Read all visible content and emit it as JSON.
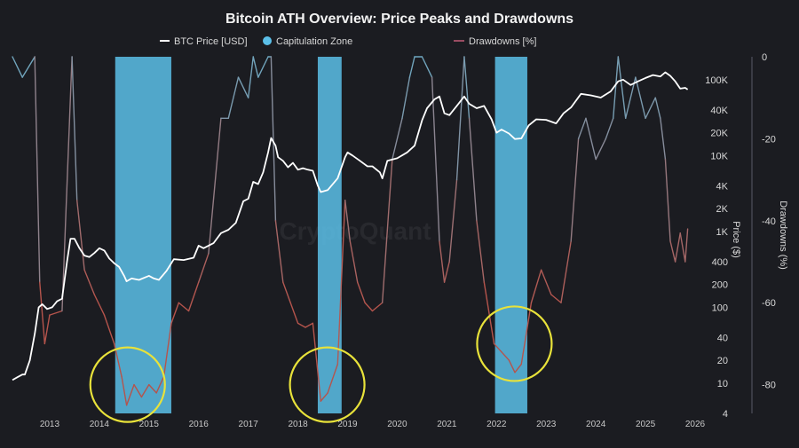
{
  "chart_data": {
    "type": "line",
    "title": "Bitcoin ATH Overview: Price Peaks and Drawdowns",
    "watermark": "CryptoQuant",
    "legend": {
      "placement": "top",
      "entries": [
        "BTC Price [USD]",
        "Capitulation Zone",
        "Drawdowns [%]"
      ]
    },
    "colors": {
      "background": "#1b1c21",
      "price_line": "#ffffff",
      "capitulation_zone": "#5bbfe8",
      "drawdown_high": "#6ea8c2",
      "drawdown_low": "#b5544c",
      "highlight_circle": "#e8e23a"
    },
    "x_axis": {
      "type": "time",
      "range": [
        2012.75,
        2026.5
      ],
      "tick_labels": [
        "2013",
        "2014",
        "2015",
        "2016",
        "2017",
        "2018",
        "2019",
        "2020",
        "2021",
        "2022",
        "2023",
        "2024",
        "2025",
        "2026"
      ],
      "tick_values": [
        2013,
        2014,
        2015,
        2016,
        2017,
        2018,
        2019,
        2020,
        2021,
        2022,
        2023,
        2024,
        2025,
        2026
      ]
    },
    "price_axis": {
      "label": "Price ($)",
      "scale": "log",
      "range": [
        4,
        200000
      ],
      "tick_labels": [
        "100K",
        "40K",
        "20K",
        "10K",
        "4K",
        "2K",
        "1K",
        "400",
        "200",
        "100",
        "40",
        "20",
        "10",
        "4"
      ],
      "tick_values": [
        100000,
        40000,
        20000,
        10000,
        4000,
        2000,
        1000,
        400,
        200,
        100,
        40,
        20,
        10,
        4
      ],
      "grid": false
    },
    "drawdown_axis": {
      "label": "Drawdowns (%)",
      "scale": "linear",
      "range": [
        -87,
        0
      ],
      "tick_labels": [
        "0",
        "-20",
        "-40",
        "-60",
        "-80"
      ],
      "tick_values": [
        0,
        -20,
        -40,
        -60,
        -80
      ]
    },
    "series": [
      {
        "name": "BTC Price [USD]",
        "x": [
          2012.75,
          2012.85,
          2012.95,
          2013.0,
          2013.1,
          2013.2,
          2013.28,
          2013.35,
          2013.45,
          2013.55,
          2013.65,
          2013.75,
          2013.85,
          2013.92,
          2014.0,
          2014.1,
          2014.2,
          2014.3,
          2014.4,
          2014.5,
          2014.6,
          2014.7,
          2014.8,
          2014.9,
          2015.0,
          2015.05,
          2015.15,
          2015.3,
          2015.5,
          2015.6,
          2015.7,
          2015.85,
          2016.0,
          2016.2,
          2016.4,
          2016.5,
          2016.6,
          2016.8,
          2016.95,
          2017.1,
          2017.25,
          2017.4,
          2017.5,
          2017.6,
          2017.7,
          2017.8,
          2017.9,
          2017.96,
          2018.05,
          2018.1,
          2018.2,
          2018.3,
          2018.4,
          2018.5,
          2018.6,
          2018.7,
          2018.8,
          2018.9,
          2018.96,
          2019.1,
          2019.3,
          2019.45,
          2019.5,
          2019.6,
          2019.75,
          2019.9,
          2020.0,
          2020.15,
          2020.2,
          2020.3,
          2020.5,
          2020.7,
          2020.85,
          2021.0,
          2021.1,
          2021.25,
          2021.35,
          2021.45,
          2021.55,
          2021.7,
          2021.85,
          2021.95,
          2022.1,
          2022.25,
          2022.4,
          2022.5,
          2022.6,
          2022.75,
          2022.87,
          2023.0,
          2023.15,
          2023.3,
          2023.5,
          2023.7,
          2023.85,
          2024.0,
          2024.2,
          2024.4,
          2024.6,
          2024.8,
          2024.95,
          2025.05,
          2025.2,
          2025.35,
          2025.5,
          2025.65,
          2025.8,
          2025.9,
          2026.0,
          2026.1,
          2026.2,
          2026.3,
          2026.35
        ],
        "values": [
          11,
          12,
          13,
          13,
          20,
          45,
          100,
          110,
          95,
          100,
          120,
          130,
          400,
          800,
          800,
          600,
          480,
          460,
          520,
          600,
          560,
          440,
          380,
          340,
          260,
          220,
          240,
          230,
          260,
          240,
          230,
          300,
          430,
          420,
          450,
          650,
          600,
          700,
          950,
          1050,
          1300,
          2500,
          2700,
          4500,
          4200,
          6000,
          11000,
          17000,
          13500,
          9500,
          8500,
          7000,
          8000,
          6500,
          6800,
          6500,
          6300,
          4000,
          3300,
          3500,
          5000,
          9500,
          11000,
          10000,
          8500,
          7200,
          7200,
          6000,
          5000,
          8500,
          9200,
          11000,
          13500,
          29000,
          42000,
          55000,
          60000,
          36000,
          34000,
          45000,
          60000,
          48000,
          42000,
          45000,
          30000,
          20000,
          22000,
          19500,
          16500,
          16800,
          25000,
          30000,
          29500,
          26500,
          36000,
          43000,
          65000,
          62000,
          58000,
          70000,
          95000,
          100000,
          85000,
          95000,
          105000,
          115000,
          110000,
          125000,
          112000,
          95000,
          76000,
          78000,
          74000
        ]
      },
      {
        "name": "Drawdowns [%]",
        "x": [
          2012.75,
          2012.95,
          2013.2,
          2013.3,
          2013.4,
          2013.5,
          2013.75,
          2013.95,
          2014.05,
          2014.2,
          2014.4,
          2014.6,
          2014.8,
          2014.95,
          2015.05,
          2015.2,
          2015.35,
          2015.5,
          2015.65,
          2015.8,
          2015.95,
          2016.1,
          2016.3,
          2016.5,
          2016.7,
          2016.95,
          2017.1,
          2017.3,
          2017.5,
          2017.6,
          2017.7,
          2017.9,
          2017.96,
          2018.05,
          2018.2,
          2018.35,
          2018.5,
          2018.65,
          2018.8,
          2018.96,
          2019.1,
          2019.3,
          2019.45,
          2019.55,
          2019.7,
          2019.85,
          2020.0,
          2020.2,
          2020.4,
          2020.6,
          2020.75,
          2020.85,
          2021.0,
          2021.2,
          2021.35,
          2021.45,
          2021.55,
          2021.7,
          2021.85,
          2021.95,
          2022.1,
          2022.25,
          2022.45,
          2022.6,
          2022.75,
          2022.87,
          2023.0,
          2023.2,
          2023.4,
          2023.6,
          2023.8,
          2024.0,
          2024.15,
          2024.3,
          2024.5,
          2024.7,
          2024.85,
          2024.95,
          2025.1,
          2025.3,
          2025.5,
          2025.7,
          2025.8,
          2025.9,
          2026.0,
          2026.1,
          2026.2,
          2026.3,
          2026.35
        ],
        "values": [
          0,
          -5,
          0,
          -55,
          -70,
          -63,
          -62,
          0,
          -35,
          -52,
          -58,
          -63,
          -70,
          -78,
          -85,
          -80,
          -83,
          -80,
          -82,
          -78,
          -65,
          -60,
          -62,
          -55,
          -48,
          -15,
          -15,
          -5,
          -10,
          0,
          -5,
          0,
          0,
          -40,
          -55,
          -60,
          -65,
          -66,
          -65,
          -84,
          -82,
          -75,
          -35,
          -45,
          -55,
          -60,
          -62,
          -60,
          -25,
          -15,
          -5,
          0,
          0,
          -5,
          -45,
          -55,
          -50,
          -30,
          0,
          -15,
          -40,
          -55,
          -70,
          -72,
          -74,
          -77,
          -75,
          -60,
          -52,
          -58,
          -60,
          -45,
          -20,
          -15,
          -25,
          -20,
          -15,
          0,
          -15,
          -5,
          -15,
          -10,
          -15,
          -25,
          -45,
          -50,
          -43,
          -50,
          -42
        ]
      }
    ],
    "capitulation_zones": [
      [
        2014.82,
        2015.95
      ],
      [
        2018.9,
        2019.38
      ],
      [
        2022.47,
        2023.12
      ]
    ],
    "highlighted_regions": [
      [
        2015.07,
        21
      ],
      [
        2019.09,
        24
      ],
      [
        2022.86,
        70
      ]
    ]
  }
}
